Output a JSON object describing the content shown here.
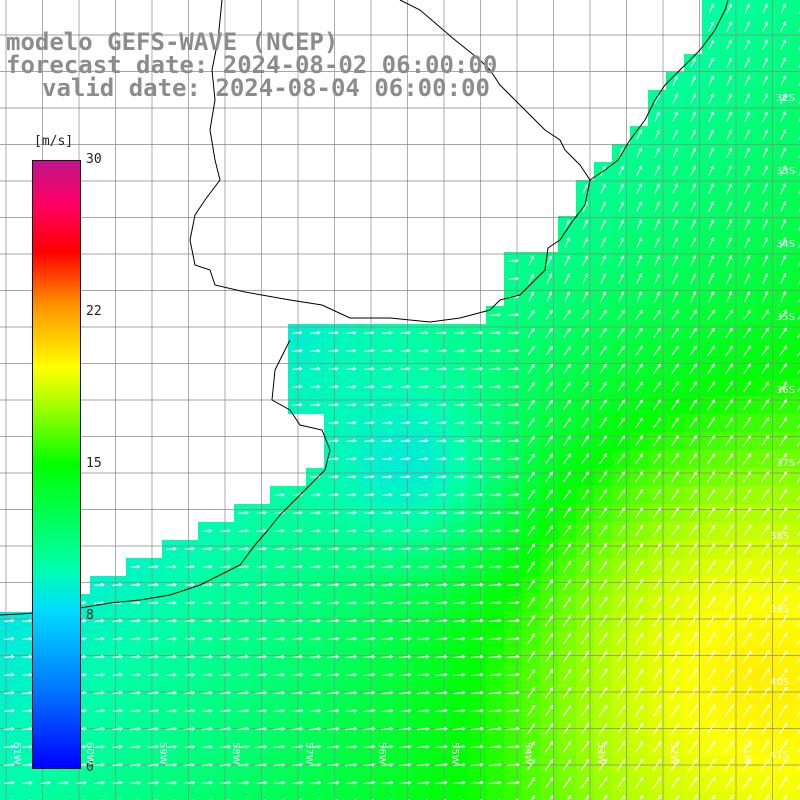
{
  "title": {
    "line1": "modelo GEFS-WAVE (NCEP)",
    "line2": "forecast date: 2024-08-02 06:00:00",
    "line3": "valid date: 2024-08-04 06:00:00"
  },
  "colorbar": {
    "unit": "[m/s]",
    "ticks": [
      "30",
      "22",
      "15",
      "8",
      "0"
    ],
    "tick_values": [
      30,
      22,
      15,
      8,
      0
    ],
    "range": [
      0,
      30
    ],
    "colors": [
      "#0000ff",
      "#0078ff",
      "#00dcff",
      "#00ffaa",
      "#00ff00",
      "#aaff00",
      "#ffff00",
      "#ff9600",
      "#ff0000",
      "#ff0064",
      "#c0148c"
    ]
  },
  "map": {
    "lat_labels": [
      "32S",
      "33S",
      "34S",
      "35S",
      "36S",
      "37S",
      "38S",
      "39S",
      "40S",
      "41S"
    ],
    "lon_labels": [
      "61W",
      "60W",
      "59W",
      "58W",
      "57W",
      "56W",
      "55W",
      "54W",
      "53W",
      "52W",
      "51W"
    ],
    "land_color": "#ffffff",
    "grid_color": "#888888",
    "arrow_color": "#ffffff",
    "coast_color": "#000000"
  }
}
